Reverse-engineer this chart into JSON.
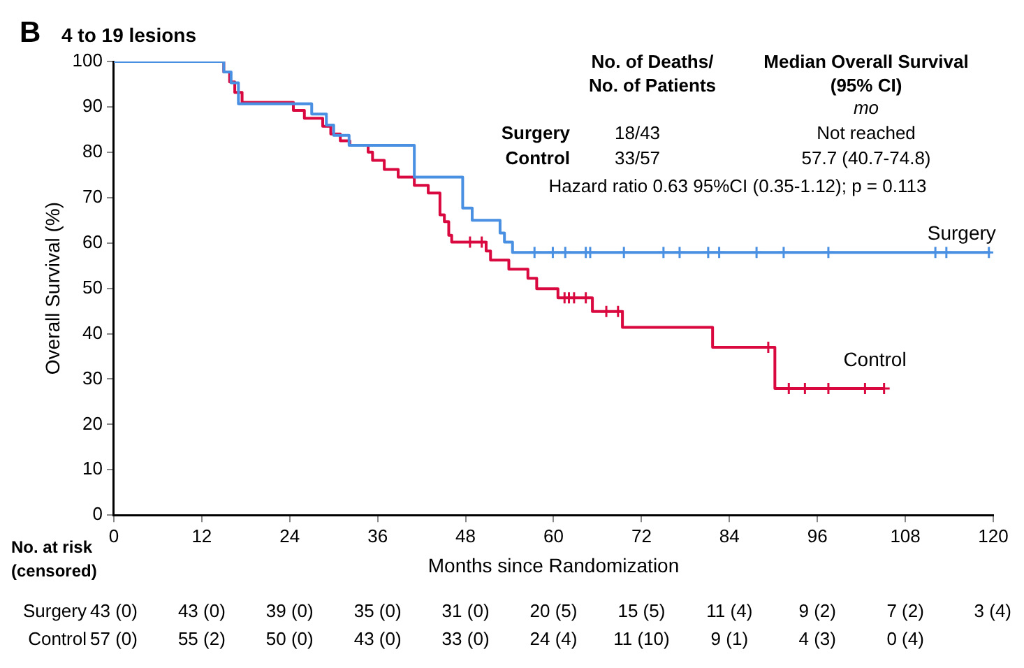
{
  "chart_data": {
    "type": "step",
    "title": "4 to 19 lesions",
    "xlabel": "Months since Randomization",
    "ylabel": "Overall Survival (%)",
    "xlim": [
      0,
      120
    ],
    "xticks": [
      0,
      12,
      24,
      36,
      48,
      60,
      72,
      84,
      96,
      108,
      120
    ],
    "ylim": [
      0,
      100
    ],
    "yticks": [
      0,
      10,
      20,
      30,
      40,
      50,
      60,
      70,
      80,
      90,
      100
    ],
    "legend": false,
    "series": [
      {
        "name": "Surgery",
        "color": "#4a90e2",
        "x": [
          0,
          15,
          16,
          17,
          27,
          29,
          30,
          32.1,
          41,
          47.6,
          48.9,
          52.7,
          53.3,
          54.4,
          119.6
        ],
        "values": [
          100,
          97.7,
          95.3,
          90.7,
          88.4,
          86,
          83.7,
          81.5,
          74.5,
          67.7,
          65,
          62.2,
          60.2,
          57.9,
          57.9
        ]
      },
      {
        "name": "Control",
        "color": "#d9083f",
        "x": [
          0,
          15,
          15.8,
          16.5,
          17.5,
          24.5,
          26,
          28.5,
          29.6,
          30.9,
          32.2,
          34.7,
          35.3,
          36.9,
          38.8,
          41,
          42.9,
          44.5,
          45.1,
          45.7,
          46.1,
          50.8,
          51.4,
          53.9,
          56.5,
          57.7,
          60.6,
          65.3,
          69.4,
          81.7,
          90.2,
          105.1
        ],
        "values": [
          100,
          97.7,
          95.5,
          93.2,
          91,
          89.2,
          87.5,
          85.7,
          84,
          82.5,
          81.5,
          80,
          78.2,
          76.2,
          74.5,
          72.7,
          71,
          66.2,
          64.7,
          61.7,
          60.2,
          58.2,
          56.2,
          54.2,
          52.2,
          49.9,
          47.9,
          44.9,
          41.4,
          37,
          27.9,
          27.9
        ]
      },
      {
        "type": "scatter",
        "marker": "cross",
        "color": "#4a90e2",
        "x": [
          57.4,
          59.9,
          61.6,
          64.4,
          65,
          69.6,
          75,
          77.2,
          81.1,
          82.6,
          87.7,
          91.4,
          97.5,
          112.1,
          113.6,
          119.4
        ],
        "values": [
          57.9,
          57.9,
          57.9,
          57.9,
          57.9,
          57.9,
          57.9,
          57.9,
          57.9,
          57.9,
          57.9,
          57.9,
          57.9,
          57.9,
          57.9,
          57.9
        ]
      },
      {
        "type": "scatter",
        "marker": "cross",
        "color": "#d9083f",
        "x": [
          48.6,
          50.2,
          61.5,
          62.1,
          62.8,
          64.4,
          67.2,
          68.8,
          89.3,
          92.1,
          94.3,
          97.5,
          102.5,
          105.1
        ],
        "values": [
          60.2,
          60.2,
          47.9,
          47.9,
          47.9,
          47.9,
          44.9,
          44.9,
          37,
          27.9,
          27.9,
          27.9,
          27.9,
          27.9
        ]
      }
    ],
    "annotations": [
      "B",
      "No. of Deaths/",
      "No. of Patients",
      "Median Overall Survival",
      "(95% CI)",
      "mo",
      "Surgery",
      "18/43",
      "Not reached",
      "Control",
      "33/57",
      "57.7 (40.7-74.8)",
      "Hazard ratio 0.63 95%CI (0.35-1.12); p = 0.113",
      "No. at risk",
      "(censored)",
      "Surgery",
      "43 (0)",
      "43 (0)",
      "39 (0)",
      "35 (0)",
      "31 (0)",
      "20 (5)",
      "15 (5)",
      "11 (4)",
      "9 (2)",
      "7 (2)",
      "3 (4)",
      "Control",
      "57 (0)",
      "55 (2)",
      "50 (0)",
      "43 (0)",
      "33 (0)",
      "24 (4)",
      "11 (10)",
      "9 (1)",
      "4 (3)",
      "0 (4)"
    ]
  }
}
